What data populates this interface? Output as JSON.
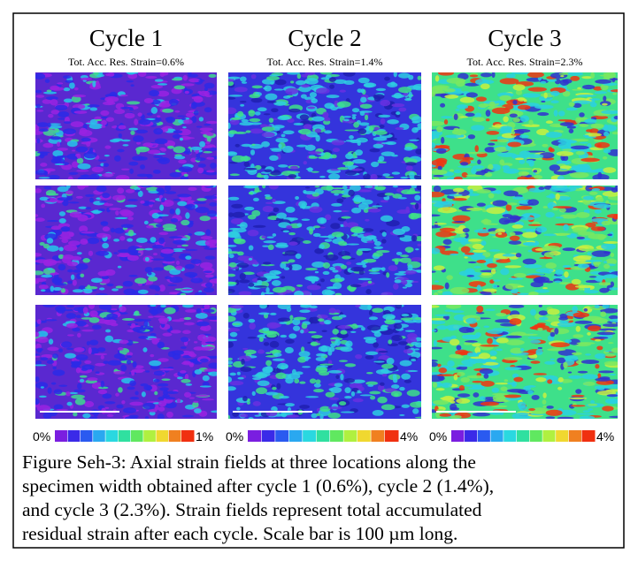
{
  "columns": [
    {
      "title": "Cycle 1",
      "subtitle": "Tot. Acc. Res. Strain=0.6%",
      "scale_min": "0%",
      "scale_max": "1%"
    },
    {
      "title": "Cycle 2",
      "subtitle": "Tot. Acc. Res. Strain=1.4%",
      "scale_min": "0%",
      "scale_max": "4%"
    },
    {
      "title": "Cycle 3",
      "subtitle": "Tot. Acc. Res. Strain=2.3%",
      "scale_min": "0%",
      "scale_max": "4%"
    }
  ],
  "caption": [
    "Figure Seh-3: Axial strain fields at three locations along the",
    "specimen width obtained after cycle 1 (0.6%), cycle 2 (1.4%),",
    "and cycle 3 (2.3%). Strain fields represent total accumulated",
    "residual strain after each cycle. Scale bar is 100 µm long."
  ]
}
